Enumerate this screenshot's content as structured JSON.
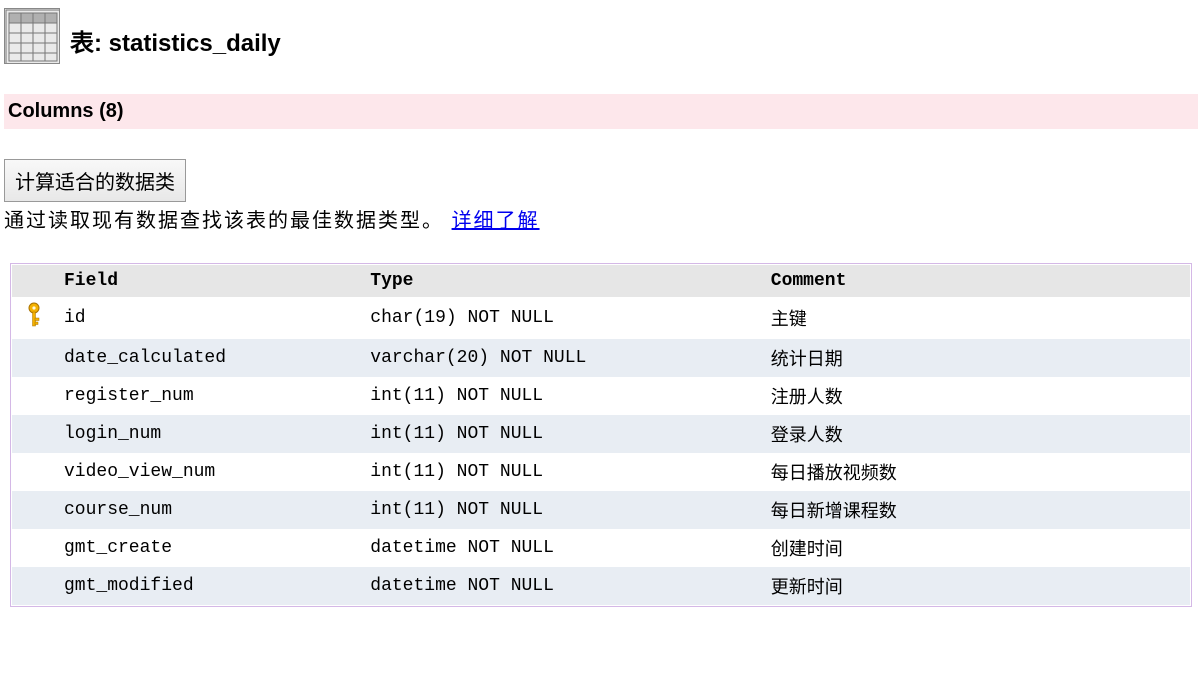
{
  "title": {
    "prefix": "表: ",
    "name": "statistics_daily"
  },
  "columns_banner": "Columns (8)",
  "calc_button_label": "计算适合的数据类",
  "description_text": "通过读取现有数据查找该表的最佳数据类型。",
  "learn_more_label": "详细了解",
  "table": {
    "headers": {
      "field": "Field",
      "type": "Type",
      "comment": "Comment"
    },
    "rows": [
      {
        "key": true,
        "field": "id",
        "type": "char(19) NOT NULL",
        "comment": "主键"
      },
      {
        "key": false,
        "field": "date_calculated",
        "type": "varchar(20) NOT NULL",
        "comment": "统计日期"
      },
      {
        "key": false,
        "field": "register_num",
        "type": "int(11) NOT NULL",
        "comment": "注册人数"
      },
      {
        "key": false,
        "field": "login_num",
        "type": "int(11) NOT NULL",
        "comment": "登录人数"
      },
      {
        "key": false,
        "field": "video_view_num",
        "type": "int(11) NOT NULL",
        "comment": "每日播放视频数"
      },
      {
        "key": false,
        "field": "course_num",
        "type": "int(11) NOT NULL",
        "comment": "每日新增课程数"
      },
      {
        "key": false,
        "field": "gmt_create",
        "type": "datetime NOT NULL",
        "comment": "创建时间"
      },
      {
        "key": false,
        "field": "gmt_modified",
        "type": "datetime NOT NULL",
        "comment": "更新时间"
      }
    ]
  },
  "colors": {
    "banner_bg": "#fde7eb",
    "header_bg": "#e6e6e6",
    "row_alt_bg": "#e8edf3",
    "border": "#d4b8e6",
    "link": "#0000ee"
  }
}
